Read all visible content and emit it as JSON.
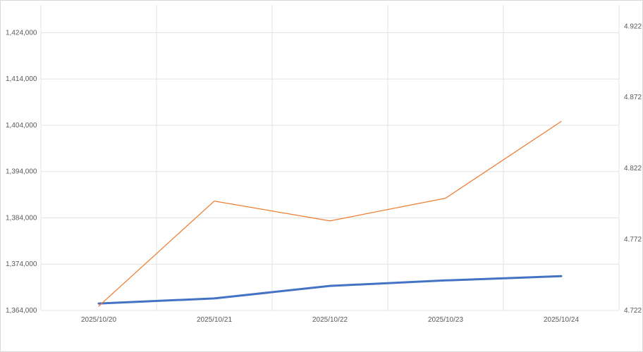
{
  "chart_data": {
    "type": "line",
    "title": "",
    "xlabel": "",
    "ylabel": "",
    "categories": [
      "2025/10/20",
      "2025/10/21",
      "2025/10/22",
      "2025/10/23",
      "2025/10/24"
    ],
    "y_left": {
      "ylim": [
        1364000,
        1430000
      ],
      "ticks": [
        1364000,
        1374000,
        1384000,
        1394000,
        1404000,
        1414000,
        1424000
      ],
      "tick_labels": [
        "1,364,000",
        "1,374,000",
        "1,384,000",
        "1,394,000",
        "1,404,000",
        "1,414,000",
        "1,424,000"
      ]
    },
    "y_right": {
      "ylim": [
        4.722,
        4.937
      ],
      "ticks": [
        4.722,
        4.772,
        4.822,
        4.872,
        4.922
      ],
      "tick_labels": [
        "4.722",
        "4.772",
        "4.822",
        "4.872",
        "4.922"
      ]
    },
    "series": [
      {
        "axis": "left",
        "color": "#4472c4",
        "values": [
          1365500,
          1366600,
          1369300,
          1370500,
          1371400
        ]
      },
      {
        "axis": "right",
        "color": "#ed7d31",
        "values": [
          4.725,
          4.799,
          4.785,
          4.801,
          4.855
        ]
      }
    ],
    "grid": true,
    "legend": "none"
  }
}
